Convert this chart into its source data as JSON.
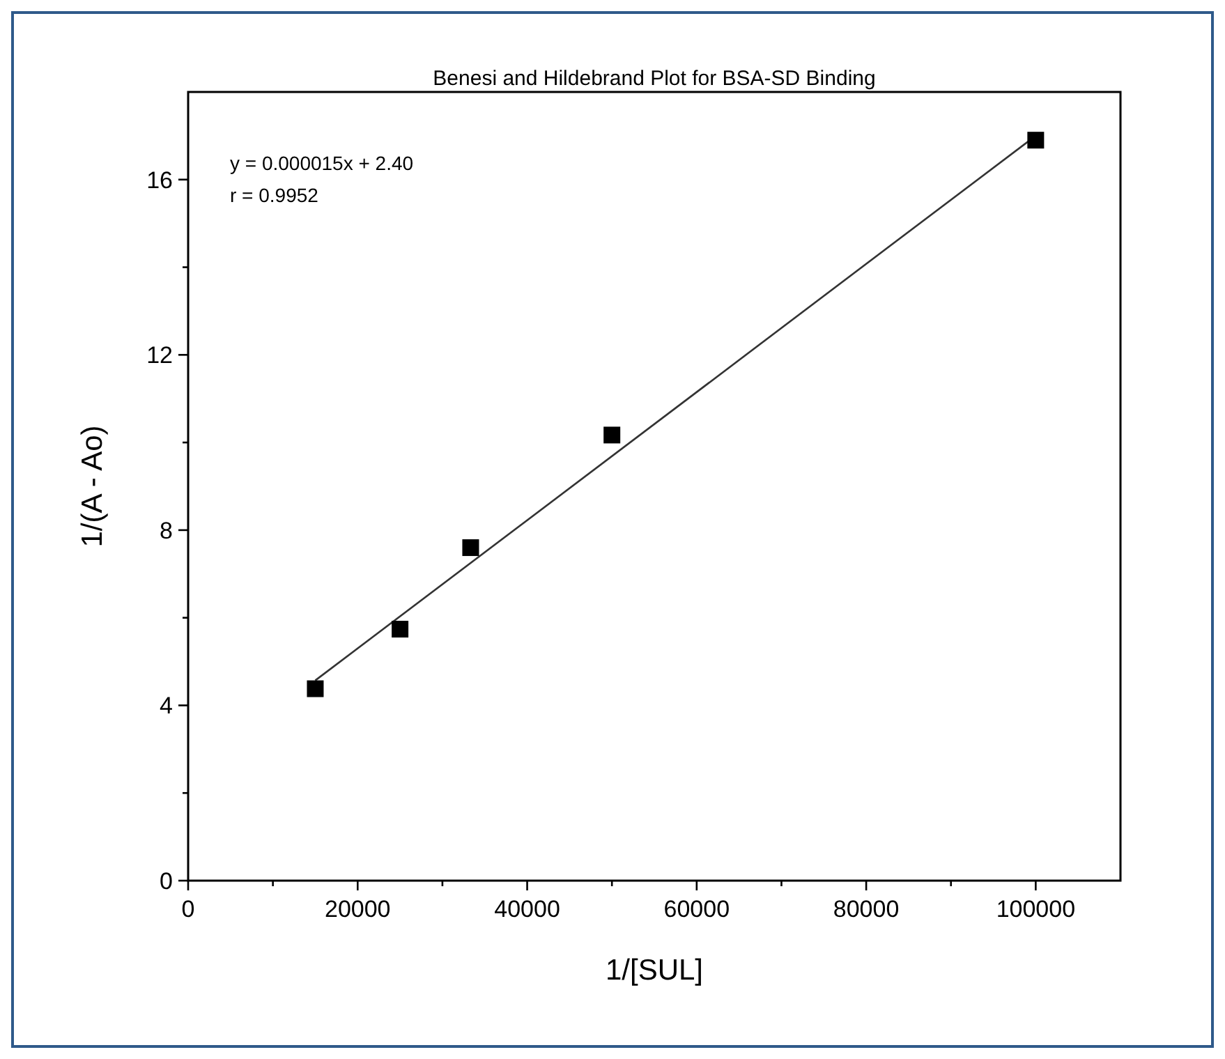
{
  "chart_data": {
    "type": "scatter",
    "title": "Benesi and Hildebrand Plot for BSA-SD Binding",
    "xlabel": "1/[SUL]",
    "ylabel": "1/(A - Ao)",
    "xlim": [
      0,
      110000
    ],
    "ylim": [
      0,
      18
    ],
    "xticks": [
      0,
      {
        "value": 10000,
        "label": null
      },
      20000,
      {
        "value": 30000,
        "label": null
      },
      40000,
      {
        "value": 50000,
        "label": null
      },
      60000,
      {
        "value": 70000,
        "label": null
      },
      80000,
      {
        "value": 90000,
        "label": null
      },
      100000
    ],
    "yticks": [
      0,
      {
        "value": 2,
        "label": null
      },
      4,
      {
        "value": 6,
        "label": null
      },
      8,
      {
        "value": 10,
        "label": null
      },
      12,
      {
        "value": 14,
        "label": null
      },
      16
    ],
    "grid": false,
    "series": [
      {
        "type": "scatter",
        "marker": "square",
        "color": "#000000",
        "x": [
          15000,
          25000,
          33333,
          50000,
          100000
        ],
        "values": [
          4.38,
          5.74,
          7.6,
          10.17,
          16.9
        ]
      },
      {
        "type": "line",
        "color": "#333333",
        "x": [
          15000,
          100000
        ],
        "values": [
          4.57,
          17.0
        ]
      }
    ],
    "annotations": [
      "y = 0.000015x + 2.40",
      "r = 0.9952"
    ]
  }
}
